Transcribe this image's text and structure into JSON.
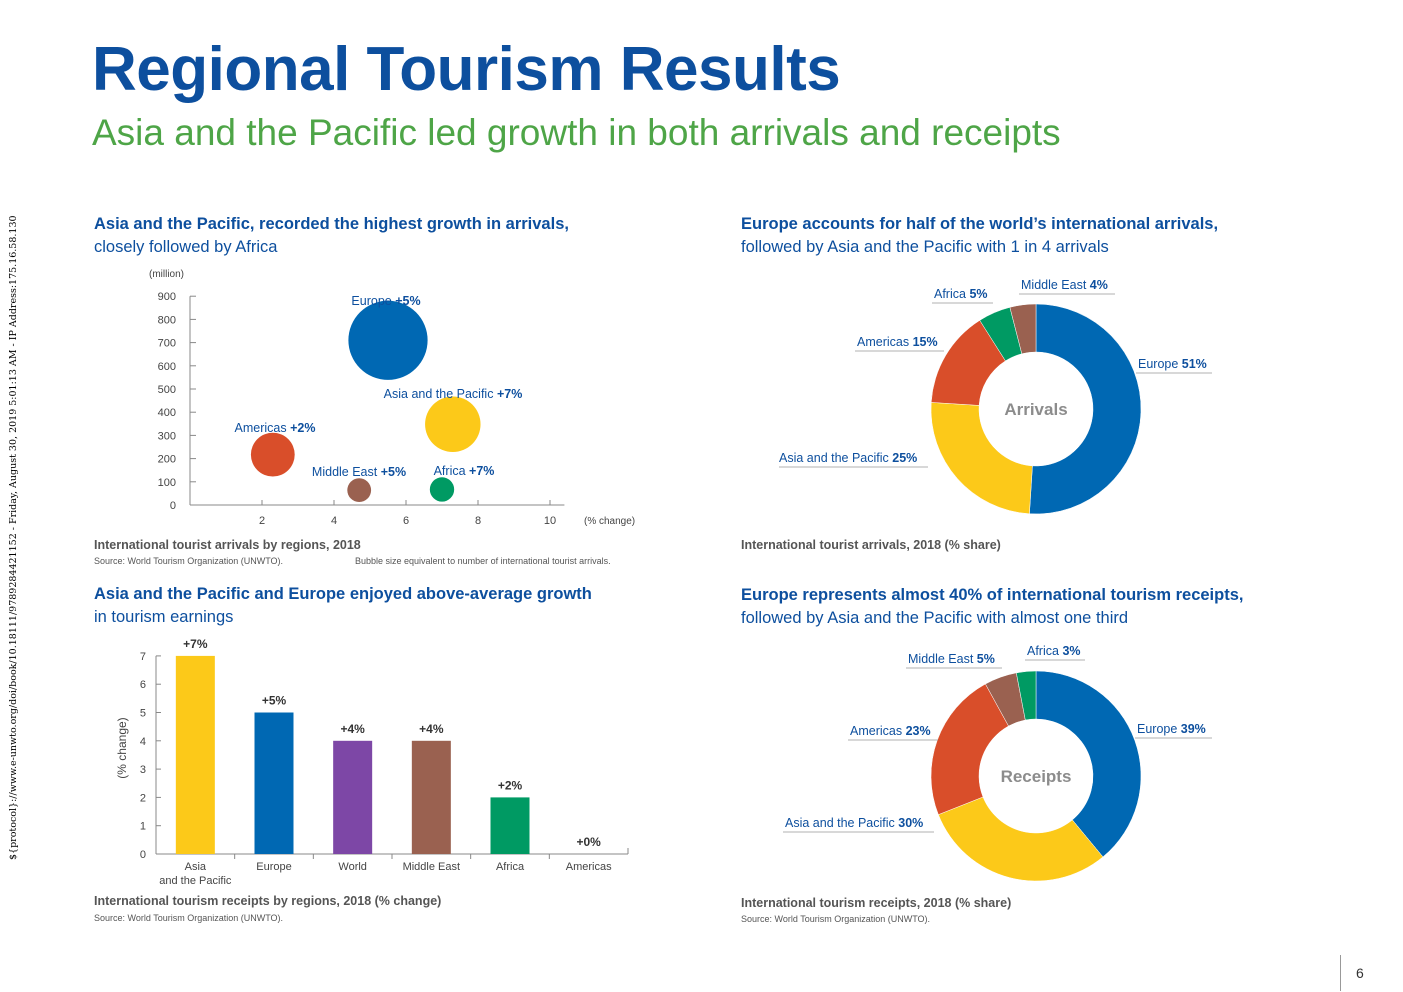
{
  "header": {
    "title": "Regional Tourism Results",
    "subtitle": "Asia and the Pacific led growth in both arrivals and receipts",
    "side_text": "${protocol}://www.e-unwto.org/doi/book/10.18111/9789284421152 - Friday, August 30, 2019 5:01:13 AM - IP Address:175.16.58.130",
    "page_number": "6"
  },
  "colors": {
    "title": "#0d4f9e",
    "subtitle": "#4ea547",
    "europe": "#0068b3",
    "asia_pacific": "#fcc919",
    "americas": "#d94e2a",
    "middle_east": "#9a6150",
    "africa": "#009a63",
    "world": "#7d47a6"
  },
  "panels": {
    "arrivals_bubble": {
      "heading_bold": "Asia and the Pacific, recorded the highest growth in arrivals,",
      "heading_rest": "closely followed by Africa",
      "caption": "International tourist arrivals by regions, 2018",
      "source": "Source: World Tourism Organization (UNWTO).",
      "note": "Bubble size equivalent to number of international tourist arrivals."
    },
    "arrivals_donut": {
      "heading_bold": "Europe accounts for half of the world’s international arrivals,",
      "heading_rest": "followed by Asia and the Pacific with 1 in 4 arrivals",
      "caption": "International tourist arrivals, 2018 (% share)"
    },
    "receipts_bar": {
      "heading_bold": "Asia and the Pacific and Europe enjoyed above-average growth",
      "heading_rest": "in tourism earnings",
      "caption": "International tourism receipts by regions, 2018 (% change)",
      "source": "Source: World Tourism Organization (UNWTO)."
    },
    "receipts_donut": {
      "heading_bold": "Europe represents almost 40% of international tourism receipts,",
      "heading_rest": "followed by Asia and the Pacific with almost one third",
      "caption": "International tourism receipts, 2018 (% share)",
      "source": "Source: World Tourism Organization (UNWTO)."
    }
  },
  "chart_data": [
    {
      "type": "scatter",
      "ylabel": "(million)",
      "xlabel": "(% change)",
      "xlim": [
        0,
        10
      ],
      "ylim": [
        0,
        900
      ],
      "xticks": [
        "2",
        "4",
        "6",
        "8",
        "10"
      ],
      "yticks": [
        "0",
        "100",
        "200",
        "300",
        "400",
        "500",
        "600",
        "700",
        "800",
        "900"
      ],
      "points": [
        {
          "name": "Europe",
          "label": "+5%",
          "x": 5.5,
          "y": 710,
          "arrivals": 710
        },
        {
          "name": "Asia and the Pacific",
          "label": "+7%",
          "x": 7.3,
          "y": 348,
          "arrivals": 348
        },
        {
          "name": "Americas",
          "label": "+2%",
          "x": 2.3,
          "y": 217,
          "arrivals": 217
        },
        {
          "name": "Middle East",
          "label": "+5%",
          "x": 4.7,
          "y": 64,
          "arrivals": 64
        },
        {
          "name": "Africa",
          "label": "+7%",
          "x": 7.0,
          "y": 67,
          "arrivals": 67
        }
      ]
    },
    {
      "type": "pie",
      "center_label": "Arrivals",
      "slices": [
        {
          "name": "Europe",
          "value": 51,
          "label": "51%"
        },
        {
          "name": "Asia and the Pacific",
          "value": 25,
          "label": "25%"
        },
        {
          "name": "Americas",
          "value": 15,
          "label": "15%"
        },
        {
          "name": "Africa",
          "value": 5,
          "label": "5%"
        },
        {
          "name": "Middle East",
          "value": 4,
          "label": "4%"
        }
      ]
    },
    {
      "type": "bar",
      "ylabel": "(% change)",
      "ylim": [
        0,
        7
      ],
      "yticks": [
        "0",
        "1",
        "2",
        "3",
        "4",
        "5",
        "6",
        "7"
      ],
      "categories": [
        "Asia and the Pacific",
        "Europe",
        "World",
        "Middle East",
        "Africa",
        "Americas"
      ],
      "values": [
        7,
        5,
        4,
        4,
        2,
        0
      ],
      "value_labels": [
        "+7%",
        "+5%",
        "+4%",
        "+4%",
        "+2%",
        "+0%"
      ]
    },
    {
      "type": "pie",
      "center_label": "Receipts",
      "slices": [
        {
          "name": "Europe",
          "value": 39,
          "label": "39%"
        },
        {
          "name": "Asia and the Pacific",
          "value": 30,
          "label": "30%"
        },
        {
          "name": "Americas",
          "value": 23,
          "label": "23%"
        },
        {
          "name": "Middle East",
          "value": 5,
          "label": "5%"
        },
        {
          "name": "Africa",
          "value": 3,
          "label": "3%"
        }
      ]
    }
  ]
}
